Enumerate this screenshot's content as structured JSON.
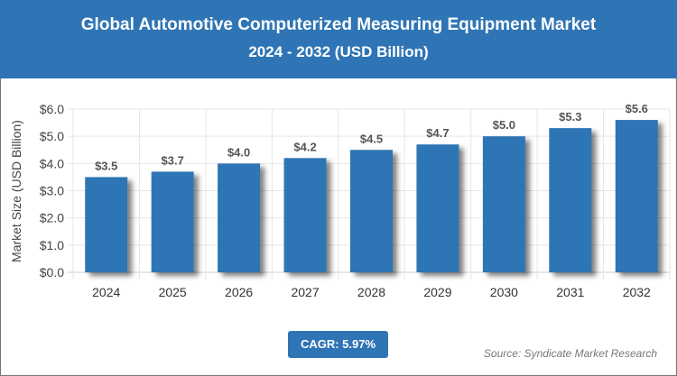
{
  "header": {
    "title": "Global Automotive Computerized Measuring Equipment Market",
    "subtitle": "2024 - 2032 (USD Billion)"
  },
  "colors": {
    "header": "#2f75b5",
    "bar": "#2f75b5"
  },
  "cagr_label": "CAGR: 5.97%",
  "source": "Source: Syndicate Market Research",
  "chart_data": {
    "type": "bar",
    "title": "Global Automotive Computerized Measuring Equipment Market",
    "subtitle": "2024 - 2032 (USD Billion)",
    "xlabel": "",
    "ylabel": "Market Size (USD Billion)",
    "categories": [
      "2024",
      "2025",
      "2026",
      "2027",
      "2028",
      "2029",
      "2030",
      "2031",
      "2032"
    ],
    "values": [
      3.5,
      3.7,
      4.0,
      4.2,
      4.5,
      4.7,
      5.0,
      5.3,
      5.6
    ],
    "data_labels": [
      "$3.5",
      "$3.7",
      "$4.0",
      "$4.2",
      "$4.5",
      "$4.7",
      "$5.0",
      "$5.3",
      "$5.6"
    ],
    "ylim": [
      0,
      6
    ],
    "yticks": [
      "$0.0",
      "$1.0",
      "$2.0",
      "$3.0",
      "$4.0",
      "$5.0",
      "$6.0"
    ],
    "grid": true
  }
}
